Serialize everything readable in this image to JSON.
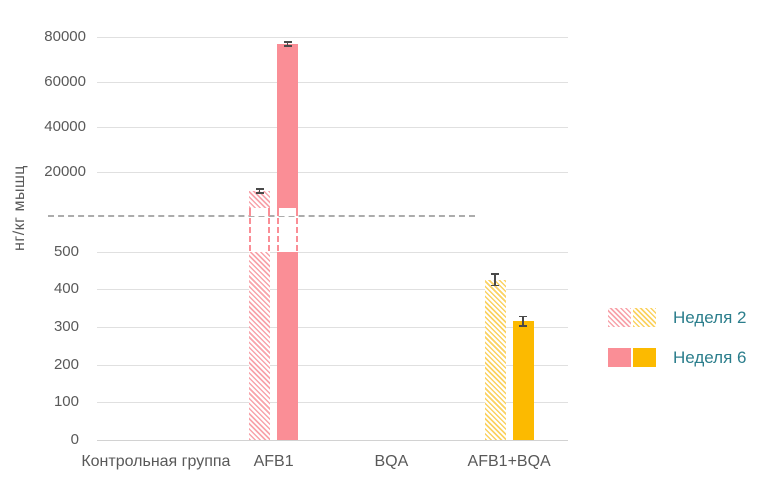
{
  "chart_data": {
    "type": "bar",
    "title": "",
    "ylabel": "нг/кг мышц",
    "categories": [
      "Контрольная группа",
      "AFB1",
      "BQA",
      "AFB1+BQA"
    ],
    "category_fills": [
      "none",
      "pink",
      "none",
      "yellow"
    ],
    "series": [
      {
        "name": "Неделя 2",
        "pattern": "hatch",
        "values": [
          0,
          11700,
          0,
          425
        ],
        "errors": [
          0,
          900,
          0,
          15
        ]
      },
      {
        "name": "Неделя 6",
        "pattern": "solid",
        "values": [
          0,
          77000,
          0,
          315
        ],
        "errors": [
          0,
          900,
          0,
          13
        ]
      }
    ],
    "axis": {
      "lower_ticks": [
        0,
        100,
        200,
        300,
        400,
        500
      ],
      "upper_ticks": [
        20000,
        40000,
        60000,
        80000
      ],
      "axis_break_between": [
        500,
        20000
      ],
      "grid": true,
      "break_line_style": "dashed"
    },
    "legend_position": "right"
  },
  "colors": {
    "pink": "#FA8E96",
    "pink_hatch_stripe": "#F8A4AB",
    "yellow": "#FCBA00",
    "yellow_hatch_stripe": "#FAD262",
    "legend_text": "#2B7E8C",
    "axis_text": "#595959",
    "gridline": "#E0E0E0",
    "break_line": "#ACACAC",
    "error_bar": "#4A4A4A"
  }
}
